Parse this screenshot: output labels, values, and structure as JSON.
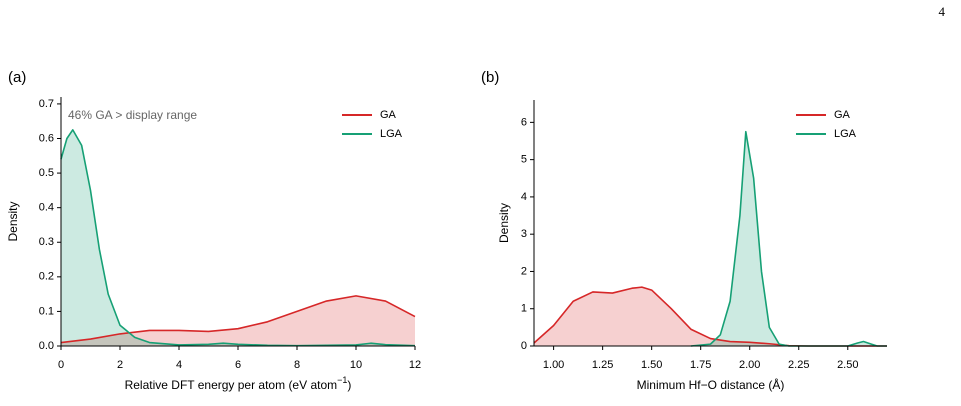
{
  "page_number": "4",
  "chart_data": [
    {
      "type": "area",
      "label": "(a)",
      "ylabel": "Density",
      "xlabel": [
        "Relative DFT energy per atom (eV atom",
        "−1",
        ")"
      ],
      "annotation": "46% GA > display range",
      "xlim": [
        0,
        12
      ],
      "ylim": [
        0,
        0.72
      ],
      "xticks": [
        0,
        2,
        4,
        6,
        8,
        10,
        12
      ],
      "yticks": [
        {
          "value": 0,
          "label": "0.0"
        },
        0.1,
        0.2,
        0.3,
        0.4,
        0.5,
        0.6,
        0.7
      ],
      "legend": "upper right",
      "series": [
        {
          "name": "GA",
          "color": "#d62728",
          "x": [
            0,
            1,
            2,
            3,
            4,
            5,
            6,
            7,
            8,
            9,
            10,
            11,
            12
          ],
          "values": [
            0.01,
            0.02,
            0.035,
            0.045,
            0.045,
            0.042,
            0.05,
            0.07,
            0.1,
            0.13,
            0.145,
            0.13,
            0.085
          ]
        },
        {
          "name": "LGA",
          "color": "#16a075",
          "x": [
            0,
            0.2,
            0.4,
            0.7,
            1,
            1.3,
            1.6,
            2,
            2.5,
            3,
            4,
            5,
            5.5,
            6,
            7,
            8,
            10,
            10.5,
            11,
            12
          ],
          "values": [
            0.54,
            0.6,
            0.625,
            0.58,
            0.45,
            0.28,
            0.15,
            0.06,
            0.025,
            0.01,
            0.003,
            0.005,
            0.008,
            0.005,
            0.002,
            0.001,
            0.003,
            0.008,
            0.004,
            0.001
          ]
        }
      ]
    },
    {
      "type": "area",
      "label": "(b)",
      "ylabel": "Density",
      "xlabel": [
        "Minimum Hf−O distance (Å)"
      ],
      "xlim": [
        0.9,
        2.7
      ],
      "ylim": [
        0,
        6.6
      ],
      "xticks": [
        {
          "value": 1,
          "label": "1.00"
        },
        1.25,
        {
          "value": 1.5,
          "label": "1.50"
        },
        1.75,
        {
          "value": 2,
          "label": "2.00"
        },
        2.25,
        {
          "value": 2.5,
          "label": "2.50"
        }
      ],
      "yticks": [
        0,
        1,
        2,
        3,
        4,
        5,
        6
      ],
      "legend": "upper right",
      "series": [
        {
          "name": "GA",
          "color": "#d62728",
          "x": [
            0.9,
            1.0,
            1.1,
            1.2,
            1.3,
            1.4,
            1.45,
            1.5,
            1.6,
            1.7,
            1.8,
            1.9,
            2.0,
            2.1,
            2.2,
            2.3,
            2.7
          ],
          "values": [
            0.08,
            0.55,
            1.2,
            1.45,
            1.42,
            1.55,
            1.58,
            1.5,
            1.0,
            0.45,
            0.2,
            0.12,
            0.1,
            0.06,
            0.01,
            0,
            0
          ]
        },
        {
          "name": "LGA",
          "color": "#16a075",
          "x": [
            1.7,
            1.8,
            1.85,
            1.9,
            1.95,
            1.98,
            2.02,
            2.06,
            2.1,
            2.15,
            2.2,
            2.5,
            2.55,
            2.58,
            2.62,
            2.65,
            2.7
          ],
          "values": [
            0,
            0.05,
            0.3,
            1.2,
            3.5,
            5.75,
            4.5,
            2.0,
            0.5,
            0.05,
            0,
            0,
            0.08,
            0.12,
            0.05,
            0,
            0
          ]
        }
      ]
    }
  ]
}
